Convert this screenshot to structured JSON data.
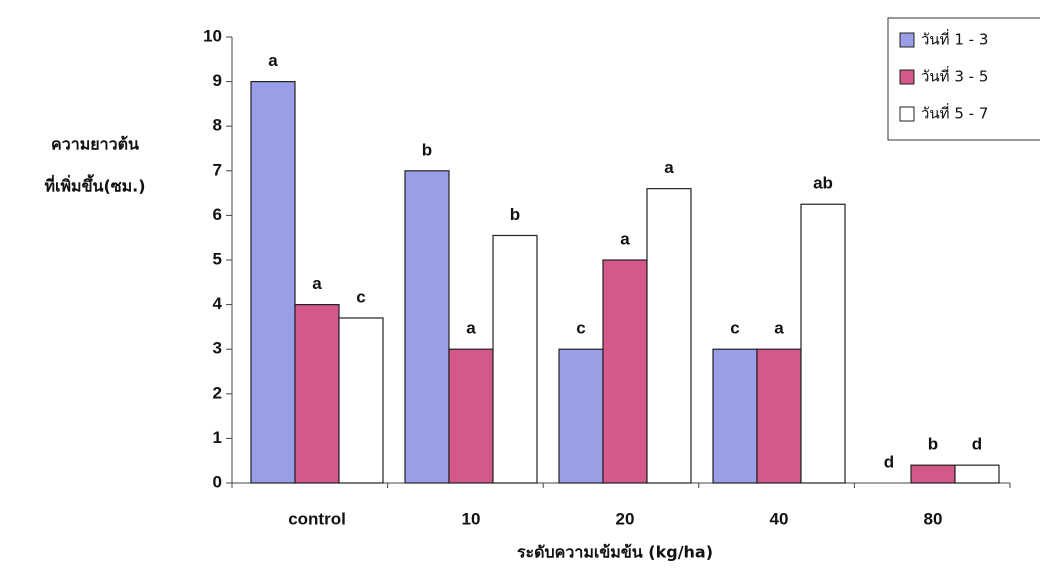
{
  "chart_data": {
    "type": "bar",
    "y_label_lines": [
      "ความยาวต้น",
      "ที่เพิ่มขึ้น(ซม.)"
    ],
    "x_label": "ระดับความเข้มข้น (kg/ha)",
    "categories": [
      "control",
      "10",
      "20",
      "40",
      "80"
    ],
    "series": [
      {
        "name": "วันที่ 1 - 3",
        "color": "#9a9ee6",
        "values": [
          9,
          7,
          3,
          3,
          0
        ],
        "letters": [
          "a",
          "b",
          "c",
          "c",
          "d"
        ]
      },
      {
        "name": "วันที่ 3 - 5",
        "color": "#d4588a",
        "values": [
          4,
          3,
          5,
          3,
          0.4
        ],
        "letters": [
          "a",
          "a",
          "a",
          "a",
          "b"
        ]
      },
      {
        "name": "วันที่ 5 - 7",
        "color": "#ffffff",
        "values": [
          3.7,
          5.55,
          6.6,
          6.25,
          0.4
        ],
        "letters": [
          "c",
          "b",
          "a",
          "ab",
          "d"
        ]
      }
    ],
    "ylim": [
      0,
      10
    ],
    "yticks": [
      0,
      1,
      2,
      3,
      4,
      5,
      6,
      7,
      8,
      9,
      10
    ],
    "legend": "top-right"
  }
}
